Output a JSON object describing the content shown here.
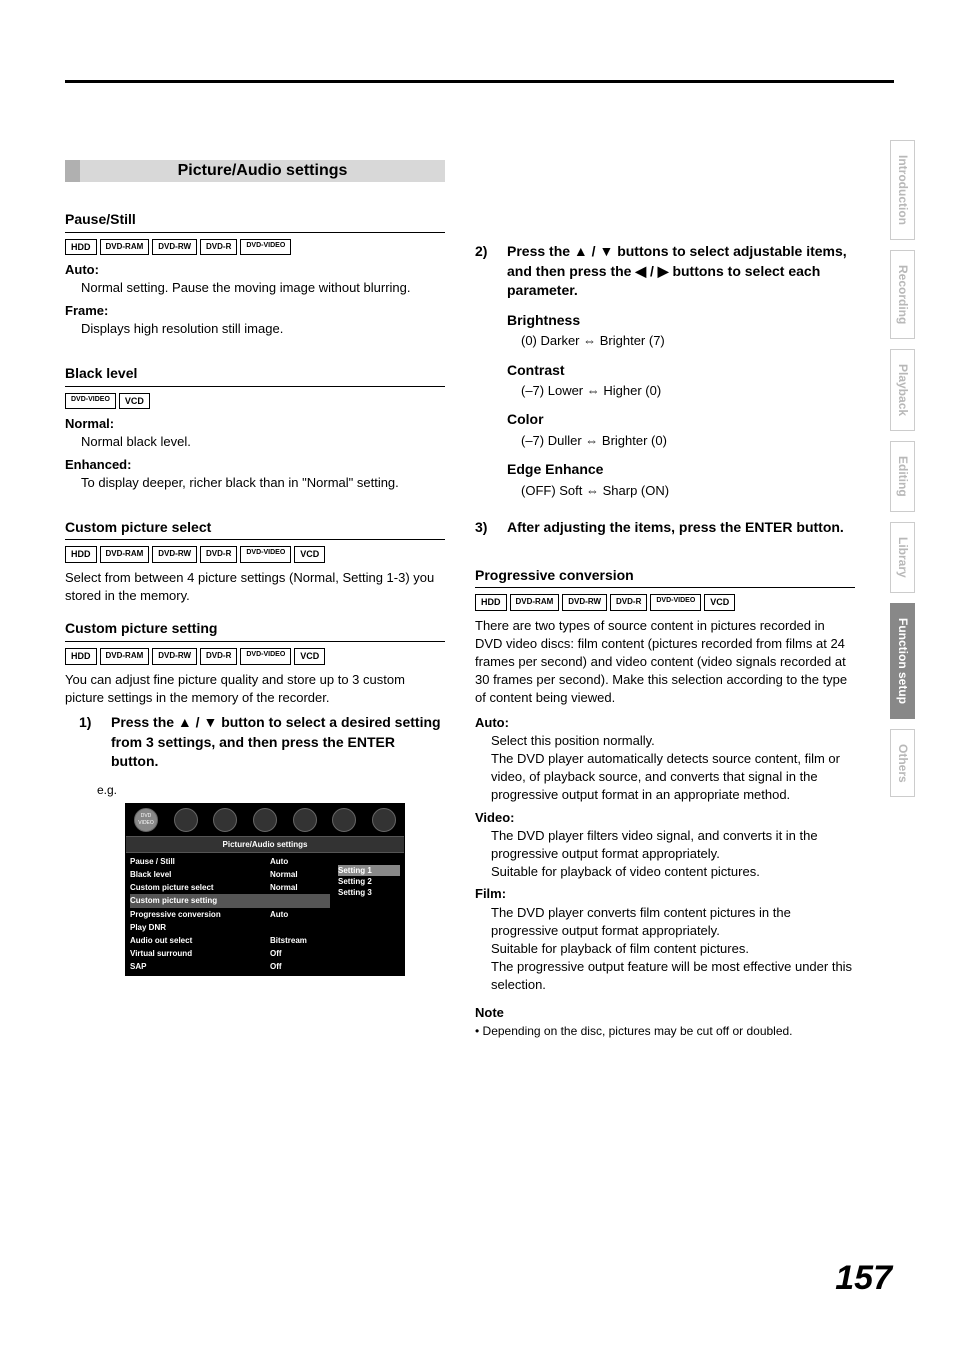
{
  "page_number": "157",
  "header_rule_color": "#000000",
  "section_title": "Picture/Audio settings",
  "section_title_bg": "#d8d8d8",
  "section_title_pre_bg": "#b0b0b0",
  "tabs": {
    "items": [
      "Introduction",
      "Recording",
      "Playback",
      "Editing",
      "Library",
      "Function setup",
      "Others"
    ],
    "active_index": 5,
    "active_bg": "#888888",
    "inactive_color": "#b8b8b8"
  },
  "left": {
    "pause_still": {
      "title": "Pause/Still",
      "media": [
        "HDD",
        "DVD-RAM",
        "DVD-RW",
        "DVD-R",
        "DVD-VIDEO"
      ],
      "auto_label": "Auto:",
      "auto_desc": "Normal setting. Pause the moving image without blurring.",
      "frame_label": "Frame:",
      "frame_desc": "Displays high resolution still image."
    },
    "black_level": {
      "title": "Black level",
      "media": [
        "DVD-VIDEO",
        "VCD"
      ],
      "normal_label": "Normal:",
      "normal_desc": "Normal black level.",
      "enhanced_label": "Enhanced:",
      "enhanced_desc": "To display deeper, richer black than in \"Normal\" setting."
    },
    "custom_select": {
      "title": "Custom picture select",
      "media": [
        "HDD",
        "DVD-RAM",
        "DVD-RW",
        "DVD-R",
        "DVD-VIDEO",
        "VCD"
      ],
      "desc": "Select from between 4 picture settings (Normal, Setting 1-3) you stored in the memory."
    },
    "custom_setting": {
      "title": "Custom picture setting",
      "media": [
        "HDD",
        "DVD-RAM",
        "DVD-RW",
        "DVD-R",
        "DVD-VIDEO",
        "VCD"
      ],
      "desc": "You can adjust fine picture quality and store up to 3 custom picture settings in the memory of the recorder.",
      "step1_num": "1)",
      "step1_text": "Press the ▲ / ▼ button to select a desired setting from 3 settings, and then press the ENTER button.",
      "eg_label": "e.g."
    },
    "menu": {
      "banner": "Picture/Audio settings",
      "icon_label": "DVD VIDEO",
      "rows": [
        {
          "label": "Pause / Still",
          "value": "Auto"
        },
        {
          "label": "Black level",
          "value": "Normal"
        },
        {
          "label": "Custom picture select",
          "value": "Normal"
        },
        {
          "label": "Custom picture setting",
          "value": ""
        },
        {
          "label": "Progressive conversion",
          "value": "Auto"
        },
        {
          "label": "Play DNR",
          "value": ""
        },
        {
          "label": "Audio out select",
          "value": "Bitstream"
        },
        {
          "label": "Virtual surround",
          "value": "Off"
        },
        {
          "label": "SAP",
          "value": "Off"
        }
      ],
      "selected_row": 3,
      "right_options": [
        "Setting 1",
        "Setting 2",
        "Setting 3"
      ],
      "right_selected": 0,
      "bg": "#000000",
      "text": "#ffffff"
    }
  },
  "right": {
    "step2_num": "2)",
    "step2_text": "Press the ▲ / ▼ buttons to select adjustable items, and then press the ◀ / ▶ buttons to select each parameter.",
    "params": [
      {
        "label": "Brightness",
        "desc": "(0) Darker ⇔ Brighter (7)"
      },
      {
        "label": "Contrast",
        "desc": "(–7) Lower ⇔ Higher (0)"
      },
      {
        "label": "Color",
        "desc": "(–7) Duller ⇔ Brighter (0)"
      },
      {
        "label": "Edge Enhance",
        "desc": "(OFF) Soft ⇔ Sharp (ON)"
      }
    ],
    "step3_num": "3)",
    "step3_text": "After adjusting the items, press the ENTER button.",
    "progressive": {
      "title": "Progressive conversion",
      "media": [
        "HDD",
        "DVD-RAM",
        "DVD-RW",
        "DVD-R",
        "DVD-VIDEO",
        "VCD"
      ],
      "intro": "There are two types of source content in pictures recorded in DVD video discs: film content (pictures recorded from films at 24 frames per second) and video content (video signals recorded at 30 frames per second).  Make this selection according to the type of content being viewed.",
      "auto_label": "Auto:",
      "auto_desc1": "Select this position normally.",
      "auto_desc2": "The DVD player automatically detects source content, film or video, of playback source, and converts that signal in the progressive output format in an appropriate method.",
      "video_label": "Video:",
      "video_desc1": "The DVD player filters video signal, and converts it in the progressive output format appropriately.",
      "video_desc2": "Suitable for playback of video content pictures.",
      "film_label": "Film:",
      "film_desc1": "The DVD player converts film content pictures in the progressive output format appropriately.",
      "film_desc2": "Suitable for playback of film content pictures.",
      "film_desc3": "The progressive output feature will be most effective under this selection."
    },
    "note_label": "Note",
    "note_text": "• Depending on the disc, pictures may be cut off or doubled."
  }
}
